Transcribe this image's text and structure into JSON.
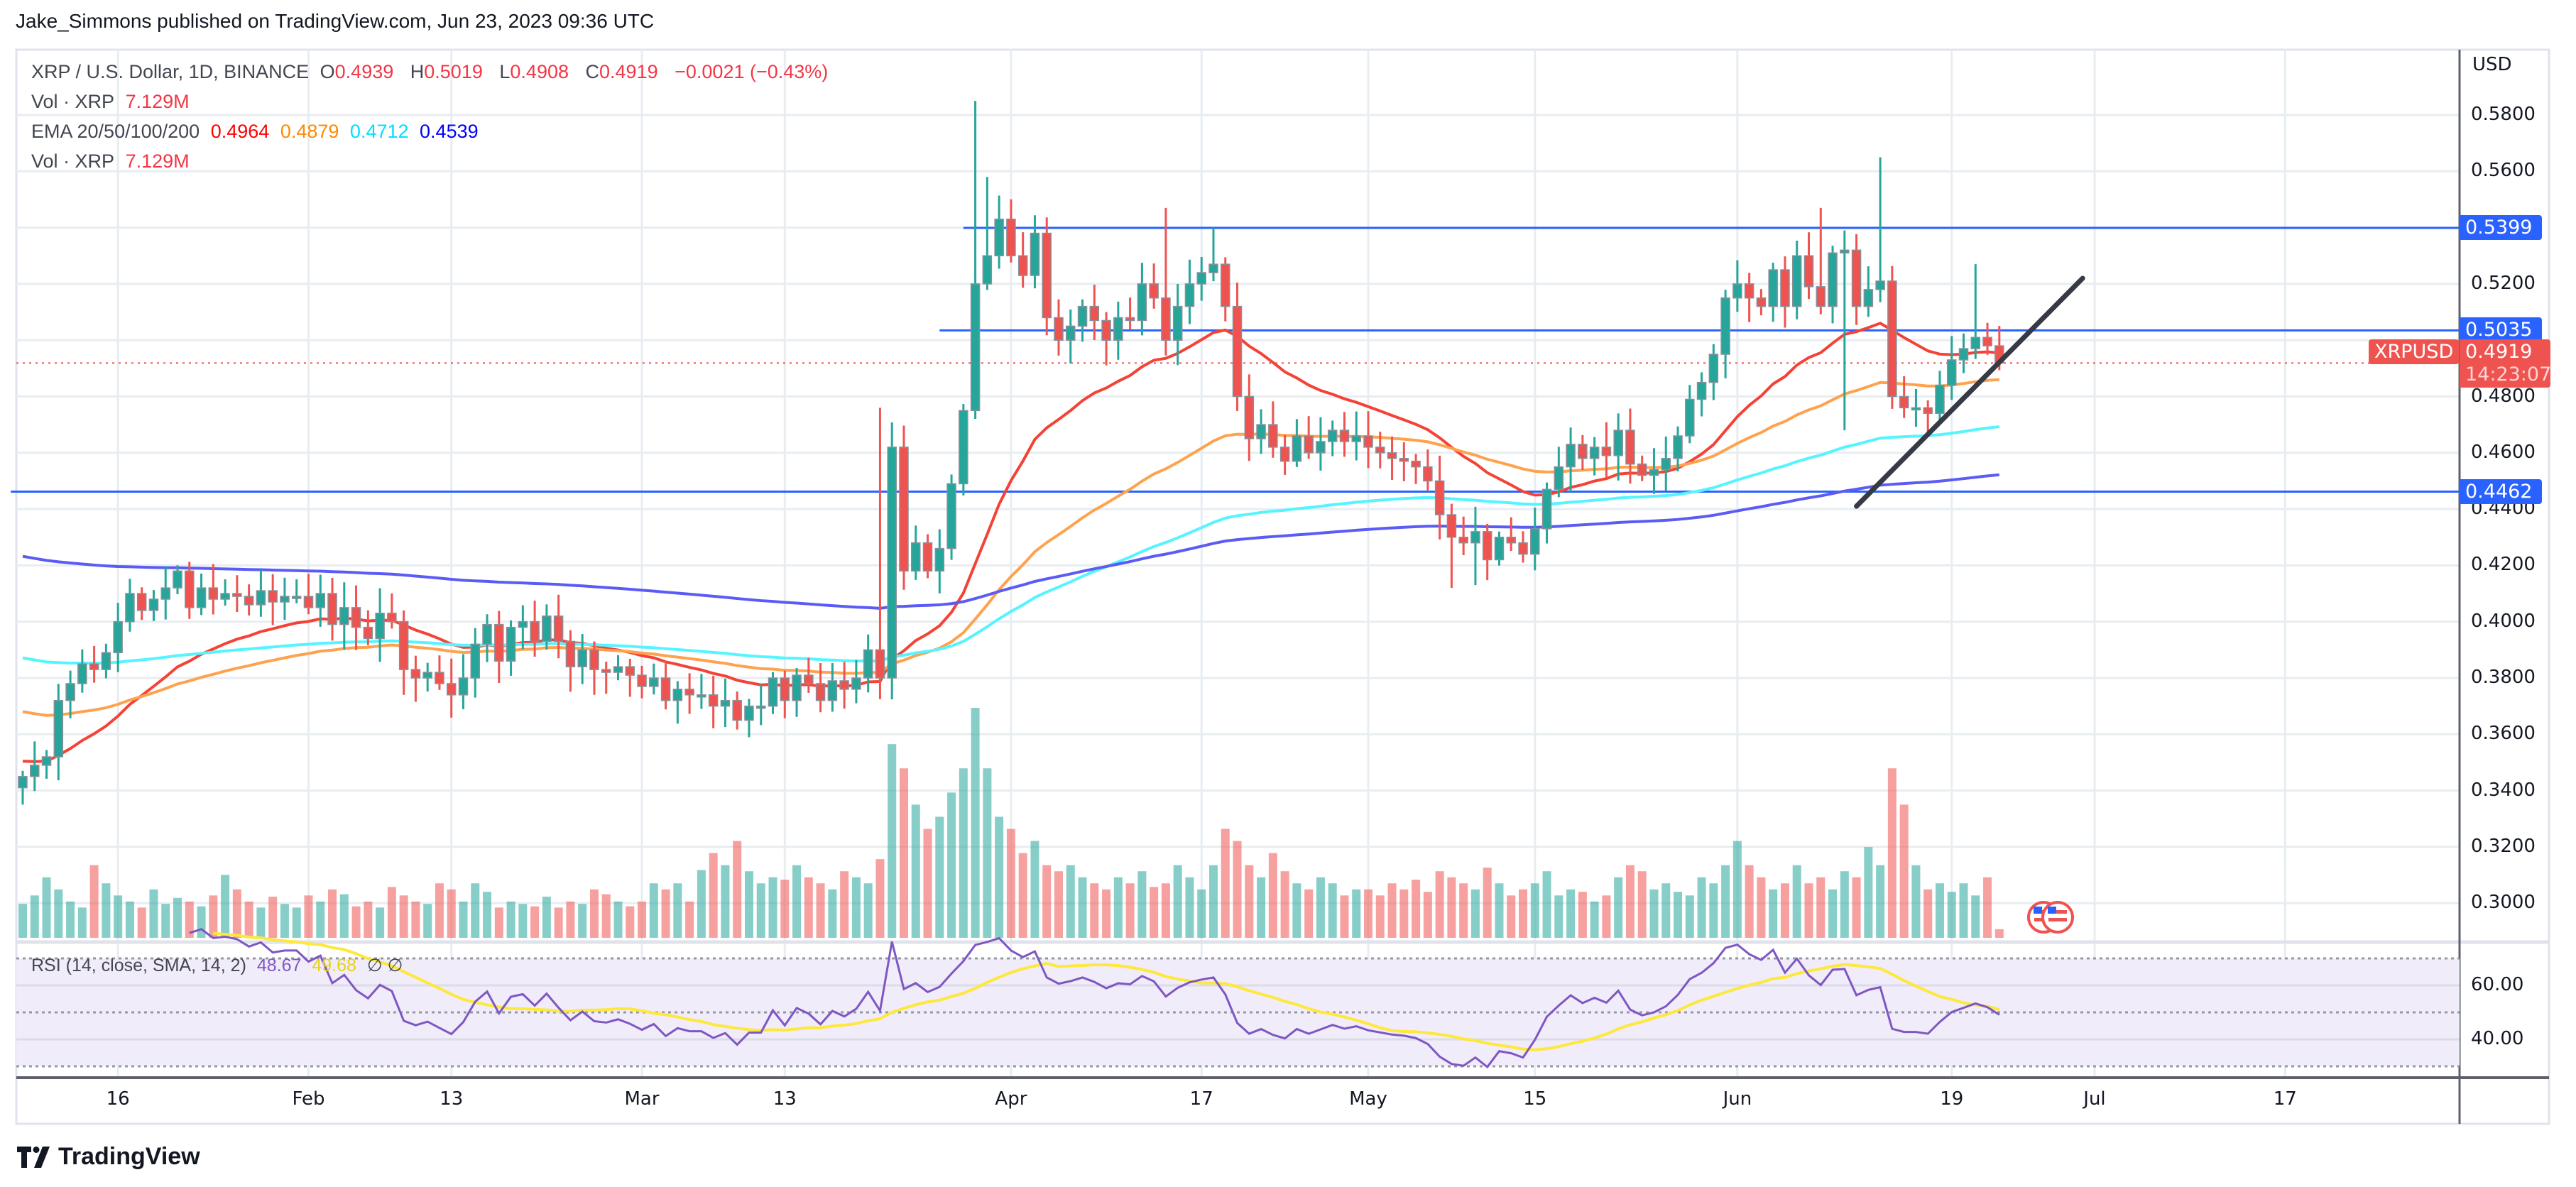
{
  "header": {
    "published": "Jake_Simmons published on TradingView.com, Jun 23, 2023 09:36 UTC"
  },
  "legend": {
    "symbol": "XRP / U.S. Dollar, 1D, BINANCE",
    "o_label": "O",
    "o": "0.4939",
    "h_label": "H",
    "h": "0.5019",
    "l_label": "L",
    "l": "0.4908",
    "c_label": "C",
    "c": "0.4919",
    "change": "−0.0021 (−0.43%)",
    "vol_label": "Vol · XRP",
    "vol": "7.129M",
    "ema_label": "EMA 20/50/100/200",
    "ema20": "0.4964",
    "ema50": "0.4879",
    "ema100": "0.4712",
    "ema200": "0.4539",
    "vol2_label": "Vol · XRP",
    "vol2": "7.129M"
  },
  "rsi_legend": {
    "label": "RSI (14, close, SMA, 14, 2)",
    "rsi": "48.67",
    "sma": "49.68",
    "extra": "∅  ∅"
  },
  "price_axis": {
    "currency": "USD"
  },
  "symbol_badge": "XRPUSD",
  "countdown": "14:23:07",
  "logo": {
    "text": "TradingView",
    "icon": "tradingview-logo-icon"
  },
  "event_icon": "us-flag-event-icon",
  "colors": {
    "up": "#26a69a",
    "down": "#ef5350",
    "ema20": "#f44336",
    "ema50": "#ffa24d",
    "ema100": "#55f4ff",
    "ema200": "#5b5bf5",
    "level": "#2962ff",
    "trendline": "#363a45",
    "rsi": "#7e57c2",
    "rsi_sma": "#fde83b",
    "rsi_band": "#f1ecf9"
  },
  "chart_data": {
    "type": "candlestick",
    "title": "XRP / U.S. Dollar, 1D, BINANCE",
    "start_date": "2023-01-08",
    "first_open": 0.341,
    "close": [
      0.345,
      0.349,
      0.352,
      0.372,
      0.378,
      0.385,
      0.383,
      0.389,
      0.4,
      0.41,
      0.404,
      0.408,
      0.412,
      0.418,
      0.405,
      0.412,
      0.408,
      0.41,
      0.409,
      0.406,
      0.411,
      0.407,
      0.409,
      0.409,
      0.405,
      0.41,
      0.399,
      0.405,
      0.398,
      0.394,
      0.403,
      0.4,
      0.383,
      0.38,
      0.382,
      0.378,
      0.374,
      0.38,
      0.392,
      0.399,
      0.386,
      0.398,
      0.4,
      0.393,
      0.402,
      0.393,
      0.384,
      0.39,
      0.383,
      0.382,
      0.384,
      0.381,
      0.377,
      0.38,
      0.372,
      0.376,
      0.374,
      0.374,
      0.37,
      0.372,
      0.365,
      0.37,
      0.37,
      0.38,
      0.372,
      0.381,
      0.378,
      0.372,
      0.379,
      0.376,
      0.38,
      0.39,
      0.38,
      0.462,
      0.418,
      0.428,
      0.418,
      0.426,
      0.449,
      0.475,
      0.52,
      0.53,
      0.543,
      0.53,
      0.523,
      0.538,
      0.508,
      0.5,
      0.505,
      0.512,
      0.507,
      0.5,
      0.508,
      0.507,
      0.52,
      0.515,
      0.5,
      0.512,
      0.52,
      0.524,
      0.527,
      0.512,
      0.48,
      0.465,
      0.47,
      0.462,
      0.457,
      0.466,
      0.46,
      0.464,
      0.468,
      0.464,
      0.466,
      0.462,
      0.46,
      0.458,
      0.457,
      0.455,
      0.45,
      0.438,
      0.43,
      0.428,
      0.432,
      0.422,
      0.43,
      0.428,
      0.424,
      0.433,
      0.447,
      0.455,
      0.463,
      0.458,
      0.462,
      0.459,
      0.468,
      0.456,
      0.452,
      0.454,
      0.458,
      0.466,
      0.479,
      0.485,
      0.495,
      0.515,
      0.52,
      0.515,
      0.512,
      0.525,
      0.512,
      0.53,
      0.519,
      0.512,
      0.531,
      0.532,
      0.512,
      0.518,
      0.521,
      0.48,
      0.476,
      0.476,
      0.474,
      0.484,
      0.493,
      0.497,
      0.501,
      0.498,
      0.4919
    ],
    "notable_highs": [
      [
        "2023-03-29",
        0.585
      ],
      [
        "2023-03-30",
        0.558
      ],
      [
        "2023-04-14",
        0.547
      ],
      [
        "2023-04-18",
        0.54
      ],
      [
        "2023-06-08",
        0.547
      ],
      [
        "2023-06-13",
        0.565
      ],
      [
        "2023-06-21",
        0.527
      ],
      [
        "2023-03-21",
        0.476
      ]
    ],
    "notable_lows": [
      [
        "2023-01-08",
        0.335
      ],
      [
        "2023-05-08",
        0.412
      ],
      [
        "2023-05-10",
        0.413
      ],
      [
        "2023-06-10",
        0.468
      ]
    ],
    "volume_millions": [
      28,
      35,
      50,
      40,
      30,
      25,
      60,
      45,
      35,
      30,
      25,
      40,
      28,
      33,
      30,
      26,
      35,
      52,
      40,
      30,
      25,
      34,
      28,
      25,
      35,
      30,
      40,
      36,
      26,
      30,
      25,
      42,
      35,
      30,
      28,
      45,
      40,
      30,
      45,
      38,
      25,
      30,
      28,
      26,
      34,
      25,
      30,
      28,
      40,
      36,
      30,
      26,
      30,
      45,
      40,
      45,
      30,
      56,
      70,
      60,
      80,
      55,
      45,
      50,
      48,
      60,
      50,
      45,
      40,
      55,
      50,
      45,
      65,
      160,
      140,
      110,
      90,
      100,
      120,
      140,
      190,
      140,
      100,
      90,
      70,
      80,
      60,
      55,
      60,
      50,
      45,
      40,
      50,
      45,
      55,
      42,
      45,
      60,
      50,
      40,
      60,
      90,
      80,
      60,
      50,
      70,
      55,
      45,
      40,
      50,
      45,
      35,
      40,
      40,
      35,
      45,
      40,
      48,
      38,
      55,
      50,
      45,
      40,
      58,
      45,
      35,
      40,
      45,
      55,
      35,
      40,
      38,
      30,
      35,
      50,
      60,
      55,
      40,
      45,
      38,
      35,
      50,
      45,
      60,
      80,
      60,
      50,
      40,
      45,
      60,
      45,
      50,
      40,
      55,
      50,
      75,
      60,
      140,
      110,
      60,
      40,
      45,
      38,
      45,
      35,
      50,
      7.129
    ],
    "ema_start_values": {
      "ema20": 0.351,
      "ema50": 0.369,
      "ema100": 0.388,
      "ema200": 0.424
    },
    "horizontal_levels": [
      {
        "price": 0.5399,
        "label": "0.5399",
        "from": "2023-03-28"
      },
      {
        "price": 0.5035,
        "label": "0.5035",
        "from": "2023-03-26"
      },
      {
        "price": 0.4462,
        "label": "0.4462",
        "from": "2023-01-07"
      }
    ],
    "trendline": {
      "from": [
        "2023-06-11",
        0.441
      ],
      "to": [
        "2023-06-30",
        0.522
      ]
    },
    "last_price": 0.4919,
    "last_price_label": "0.4919",
    "y_range": [
      0.286,
      0.59
    ],
    "y_ticks": [
      "0.5800",
      "0.5600",
      "0.5200",
      "0.4800",
      "0.4600",
      "0.4400",
      "0.4200",
      "0.4000",
      "0.3800",
      "0.3600",
      "0.3400",
      "0.3200",
      "0.3000"
    ],
    "x_ticks": [
      {
        "date": "2023-01-16",
        "label": "16"
      },
      {
        "date": "2023-02-01",
        "label": "Feb"
      },
      {
        "date": "2023-02-13",
        "label": "13"
      },
      {
        "date": "2023-03-01",
        "label": "Mar"
      },
      {
        "date": "2023-03-13",
        "label": "13"
      },
      {
        "date": "2023-04-01",
        "label": "Apr"
      },
      {
        "date": "2023-04-17",
        "label": "17"
      },
      {
        "date": "2023-05-01",
        "label": "May"
      },
      {
        "date": "2023-05-15",
        "label": "15"
      },
      {
        "date": "2023-06-01",
        "label": "Jun"
      },
      {
        "date": "2023-06-19",
        "label": "19"
      },
      {
        "date": "2023-07-01",
        "label": "Jul"
      },
      {
        "date": "2023-07-17",
        "label": "17"
      }
    ],
    "rsi": {
      "period": 14,
      "sma": 14,
      "band": [
        30,
        70
      ],
      "mid": 50,
      "tick_labels": [
        "60.00",
        "40.00"
      ],
      "tick_values": [
        60,
        40
      ]
    },
    "grid": true
  }
}
